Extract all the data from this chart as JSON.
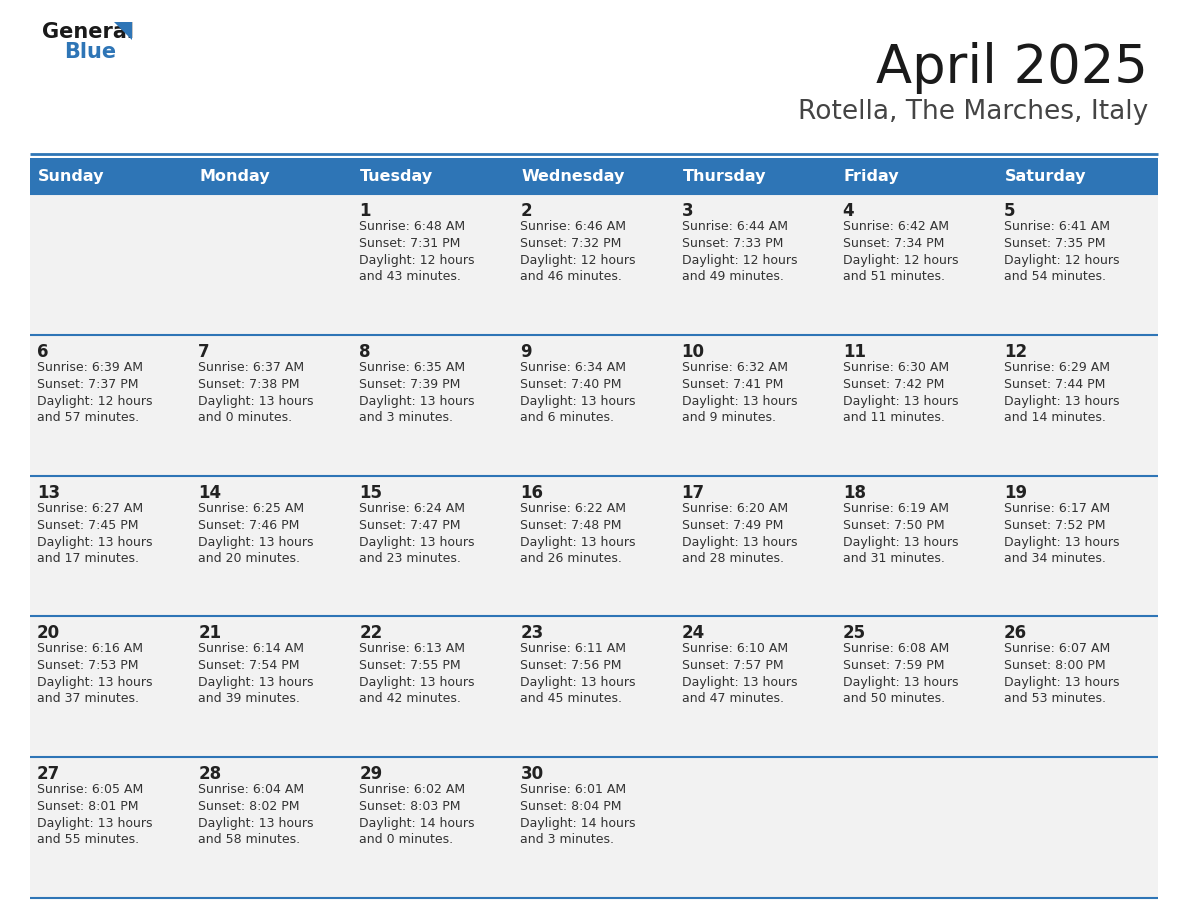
{
  "title": "April 2025",
  "subtitle": "Rotella, The Marches, Italy",
  "header_color": "#2E75B6",
  "header_text_color": "#FFFFFF",
  "cell_bg_odd": "#F2F2F2",
  "cell_bg_even": "#FFFFFF",
  "border_color": "#2E75B6",
  "text_color": "#333333",
  "days_of_week": [
    "Sunday",
    "Monday",
    "Tuesday",
    "Wednesday",
    "Thursday",
    "Friday",
    "Saturday"
  ],
  "weeks": [
    [
      {
        "day": "",
        "sunrise": "",
        "sunset": "",
        "daylight": ""
      },
      {
        "day": "",
        "sunrise": "",
        "sunset": "",
        "daylight": ""
      },
      {
        "day": "1",
        "sunrise": "Sunrise: 6:48 AM",
        "sunset": "Sunset: 7:31 PM",
        "daylight": "Daylight: 12 hours\nand 43 minutes."
      },
      {
        "day": "2",
        "sunrise": "Sunrise: 6:46 AM",
        "sunset": "Sunset: 7:32 PM",
        "daylight": "Daylight: 12 hours\nand 46 minutes."
      },
      {
        "day": "3",
        "sunrise": "Sunrise: 6:44 AM",
        "sunset": "Sunset: 7:33 PM",
        "daylight": "Daylight: 12 hours\nand 49 minutes."
      },
      {
        "day": "4",
        "sunrise": "Sunrise: 6:42 AM",
        "sunset": "Sunset: 7:34 PM",
        "daylight": "Daylight: 12 hours\nand 51 minutes."
      },
      {
        "day": "5",
        "sunrise": "Sunrise: 6:41 AM",
        "sunset": "Sunset: 7:35 PM",
        "daylight": "Daylight: 12 hours\nand 54 minutes."
      }
    ],
    [
      {
        "day": "6",
        "sunrise": "Sunrise: 6:39 AM",
        "sunset": "Sunset: 7:37 PM",
        "daylight": "Daylight: 12 hours\nand 57 minutes."
      },
      {
        "day": "7",
        "sunrise": "Sunrise: 6:37 AM",
        "sunset": "Sunset: 7:38 PM",
        "daylight": "Daylight: 13 hours\nand 0 minutes."
      },
      {
        "day": "8",
        "sunrise": "Sunrise: 6:35 AM",
        "sunset": "Sunset: 7:39 PM",
        "daylight": "Daylight: 13 hours\nand 3 minutes."
      },
      {
        "day": "9",
        "sunrise": "Sunrise: 6:34 AM",
        "sunset": "Sunset: 7:40 PM",
        "daylight": "Daylight: 13 hours\nand 6 minutes."
      },
      {
        "day": "10",
        "sunrise": "Sunrise: 6:32 AM",
        "sunset": "Sunset: 7:41 PM",
        "daylight": "Daylight: 13 hours\nand 9 minutes."
      },
      {
        "day": "11",
        "sunrise": "Sunrise: 6:30 AM",
        "sunset": "Sunset: 7:42 PM",
        "daylight": "Daylight: 13 hours\nand 11 minutes."
      },
      {
        "day": "12",
        "sunrise": "Sunrise: 6:29 AM",
        "sunset": "Sunset: 7:44 PM",
        "daylight": "Daylight: 13 hours\nand 14 minutes."
      }
    ],
    [
      {
        "day": "13",
        "sunrise": "Sunrise: 6:27 AM",
        "sunset": "Sunset: 7:45 PM",
        "daylight": "Daylight: 13 hours\nand 17 minutes."
      },
      {
        "day": "14",
        "sunrise": "Sunrise: 6:25 AM",
        "sunset": "Sunset: 7:46 PM",
        "daylight": "Daylight: 13 hours\nand 20 minutes."
      },
      {
        "day": "15",
        "sunrise": "Sunrise: 6:24 AM",
        "sunset": "Sunset: 7:47 PM",
        "daylight": "Daylight: 13 hours\nand 23 minutes."
      },
      {
        "day": "16",
        "sunrise": "Sunrise: 6:22 AM",
        "sunset": "Sunset: 7:48 PM",
        "daylight": "Daylight: 13 hours\nand 26 minutes."
      },
      {
        "day": "17",
        "sunrise": "Sunrise: 6:20 AM",
        "sunset": "Sunset: 7:49 PM",
        "daylight": "Daylight: 13 hours\nand 28 minutes."
      },
      {
        "day": "18",
        "sunrise": "Sunrise: 6:19 AM",
        "sunset": "Sunset: 7:50 PM",
        "daylight": "Daylight: 13 hours\nand 31 minutes."
      },
      {
        "day": "19",
        "sunrise": "Sunrise: 6:17 AM",
        "sunset": "Sunset: 7:52 PM",
        "daylight": "Daylight: 13 hours\nand 34 minutes."
      }
    ],
    [
      {
        "day": "20",
        "sunrise": "Sunrise: 6:16 AM",
        "sunset": "Sunset: 7:53 PM",
        "daylight": "Daylight: 13 hours\nand 37 minutes."
      },
      {
        "day": "21",
        "sunrise": "Sunrise: 6:14 AM",
        "sunset": "Sunset: 7:54 PM",
        "daylight": "Daylight: 13 hours\nand 39 minutes."
      },
      {
        "day": "22",
        "sunrise": "Sunrise: 6:13 AM",
        "sunset": "Sunset: 7:55 PM",
        "daylight": "Daylight: 13 hours\nand 42 minutes."
      },
      {
        "day": "23",
        "sunrise": "Sunrise: 6:11 AM",
        "sunset": "Sunset: 7:56 PM",
        "daylight": "Daylight: 13 hours\nand 45 minutes."
      },
      {
        "day": "24",
        "sunrise": "Sunrise: 6:10 AM",
        "sunset": "Sunset: 7:57 PM",
        "daylight": "Daylight: 13 hours\nand 47 minutes."
      },
      {
        "day": "25",
        "sunrise": "Sunrise: 6:08 AM",
        "sunset": "Sunset: 7:59 PM",
        "daylight": "Daylight: 13 hours\nand 50 minutes."
      },
      {
        "day": "26",
        "sunrise": "Sunrise: 6:07 AM",
        "sunset": "Sunset: 8:00 PM",
        "daylight": "Daylight: 13 hours\nand 53 minutes."
      }
    ],
    [
      {
        "day": "27",
        "sunrise": "Sunrise: 6:05 AM",
        "sunset": "Sunset: 8:01 PM",
        "daylight": "Daylight: 13 hours\nand 55 minutes."
      },
      {
        "day": "28",
        "sunrise": "Sunrise: 6:04 AM",
        "sunset": "Sunset: 8:02 PM",
        "daylight": "Daylight: 13 hours\nand 58 minutes."
      },
      {
        "day": "29",
        "sunrise": "Sunrise: 6:02 AM",
        "sunset": "Sunset: 8:03 PM",
        "daylight": "Daylight: 14 hours\nand 0 minutes."
      },
      {
        "day": "30",
        "sunrise": "Sunrise: 6:01 AM",
        "sunset": "Sunset: 8:04 PM",
        "daylight": "Daylight: 14 hours\nand 3 minutes."
      },
      {
        "day": "",
        "sunrise": "",
        "sunset": "",
        "daylight": ""
      },
      {
        "day": "",
        "sunrise": "",
        "sunset": "",
        "daylight": ""
      },
      {
        "day": "",
        "sunrise": "",
        "sunset": "",
        "daylight": ""
      }
    ]
  ]
}
